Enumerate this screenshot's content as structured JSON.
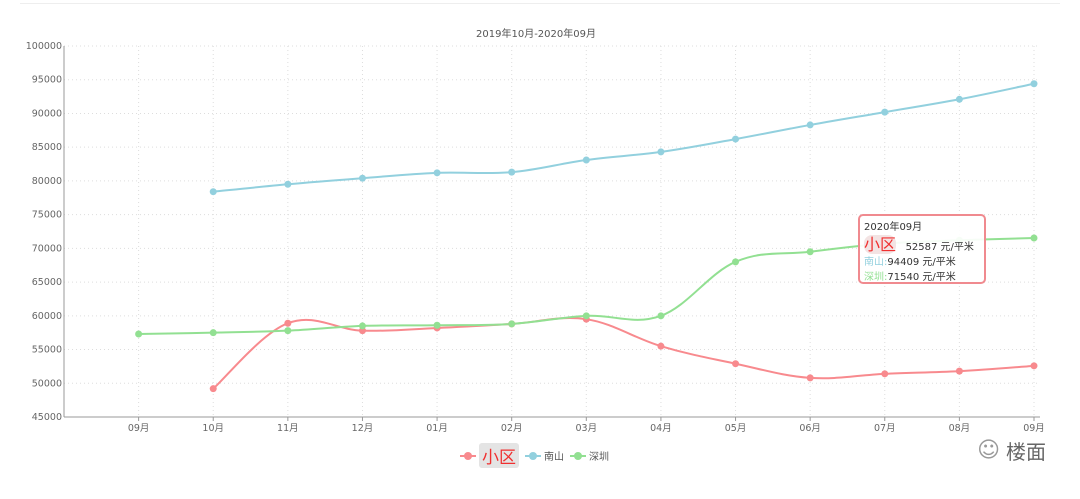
{
  "chart_data": {
    "type": "line",
    "title": "2019年10月-2020年09月",
    "categories": [
      "09月",
      "10月",
      "11月",
      "12月",
      "01月",
      "02月",
      "03月",
      "04月",
      "05月",
      "06月",
      "07月",
      "08月",
      "09月"
    ],
    "ylim": [
      45000,
      100000
    ],
    "yticks": [
      45000,
      50000,
      55000,
      60000,
      65000,
      70000,
      75000,
      80000,
      85000,
      90000,
      95000,
      100000
    ],
    "grid": true,
    "legend_position": "bottom-center",
    "series": [
      {
        "name": "小区",
        "color": "#f88a8e",
        "values": [
          null,
          49200,
          58900,
          57800,
          58200,
          58800,
          59500,
          55500,
          52900,
          50800,
          51400,
          51800,
          52587
        ]
      },
      {
        "name": "南山",
        "color": "#92d0de",
        "values": [
          null,
          78400,
          79500,
          80400,
          81200,
          81300,
          83100,
          84300,
          86200,
          88300,
          90200,
          92100,
          94409
        ]
      },
      {
        "name": "深圳",
        "color": "#92e092",
        "values": [
          57300,
          57500,
          57800,
          58500,
          58600,
          58800,
          60000,
          60000,
          68000,
          69500,
          70700,
          71200,
          71540
        ]
      }
    ]
  },
  "tooltip": {
    "title": "2020年09月",
    "rows": [
      {
        "label": "小区",
        "value": "52587 元/平米"
      },
      {
        "label": "南山:",
        "value": "94409 元/平米"
      },
      {
        "label": "深圳:",
        "value": "71540 元/平米"
      }
    ]
  },
  "watermark": "楼面"
}
